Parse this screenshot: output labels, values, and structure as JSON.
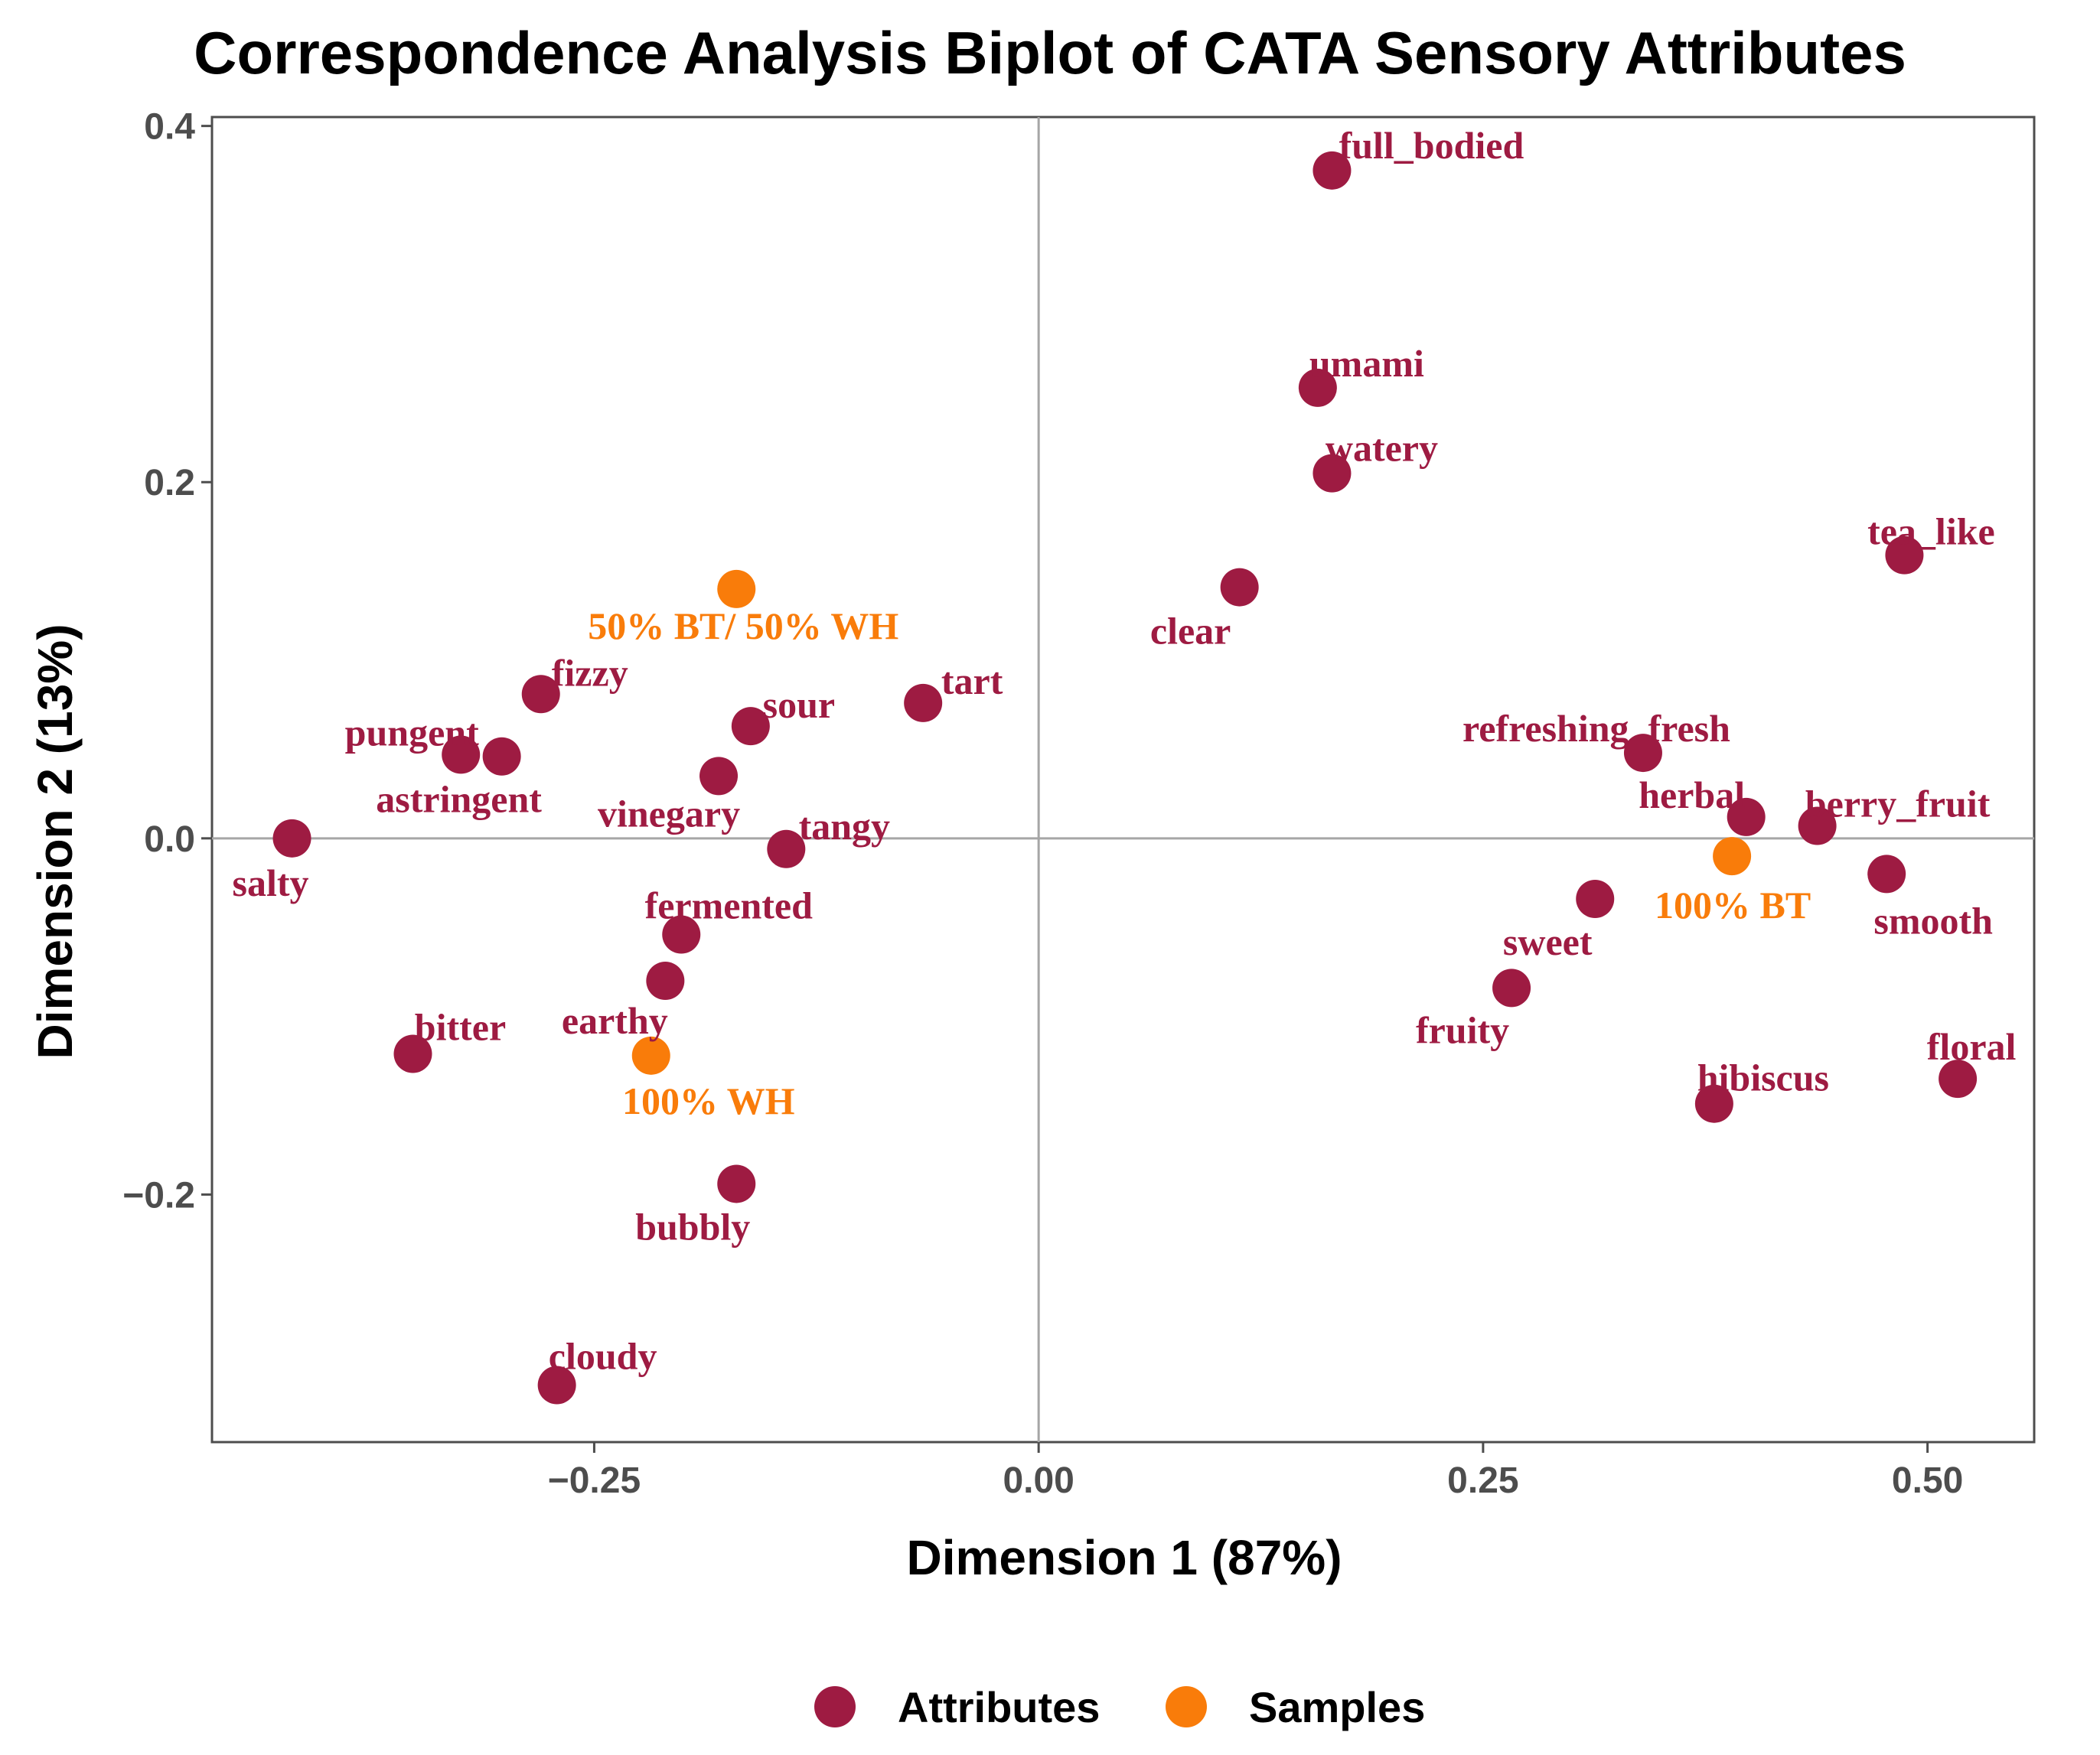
{
  "chart_data": {
    "type": "scatter",
    "title": "Correspondence Analysis Biplot of CATA Sensory Attributes",
    "xlabel": "Dimension 1 (87%)",
    "ylabel": "Dimension 2 (13%)",
    "xlim": [
      -0.465,
      0.56
    ],
    "ylim": [
      -0.339,
      0.405
    ],
    "x_ticks": [
      {
        "value": -0.25,
        "label": "−0.25"
      },
      {
        "value": 0.0,
        "label": "0.00"
      },
      {
        "value": 0.25,
        "label": "0.25"
      },
      {
        "value": 0.5,
        "label": "0.50"
      }
    ],
    "y_ticks": [
      {
        "value": -0.2,
        "label": "−0.2"
      },
      {
        "value": 0.0,
        "label": "0.0"
      },
      {
        "value": 0.2,
        "label": "0.2"
      },
      {
        "value": 0.4,
        "label": "0.4"
      }
    ],
    "reference_lines": {
      "x": 0,
      "y": 0
    },
    "grid": false,
    "legend": {
      "position": "bottom",
      "entries": [
        {
          "name": "Attributes",
          "color": "#9e1b42"
        },
        {
          "name": "Samples",
          "color": "#f97c0a"
        }
      ]
    },
    "series": [
      {
        "name": "Attributes",
        "color": "#9e1b42",
        "points": [
          {
            "label": "full_bodied",
            "x": 0.165,
            "y": 0.375
          },
          {
            "label": "umami",
            "x": 0.157,
            "y": 0.253
          },
          {
            "label": "watery",
            "x": 0.165,
            "y": 0.205
          },
          {
            "label": "tea_like",
            "x": 0.487,
            "y": 0.159
          },
          {
            "label": "clear",
            "x": 0.113,
            "y": 0.141
          },
          {
            "label": "fizzy",
            "x": -0.28,
            "y": 0.081
          },
          {
            "label": "tart",
            "x": -0.065,
            "y": 0.076
          },
          {
            "label": "sour",
            "x": -0.162,
            "y": 0.063
          },
          {
            "label": "pungent",
            "x": -0.325,
            "y": 0.047
          },
          {
            "label": "astringent",
            "x": -0.302,
            "y": 0.046
          },
          {
            "label": "refreshing_fresh",
            "x": 0.34,
            "y": 0.048
          },
          {
            "label": "vinegary",
            "x": -0.18,
            "y": 0.035
          },
          {
            "label": "herbal",
            "x": 0.398,
            "y": 0.012
          },
          {
            "label": "berry_fruit",
            "x": 0.438,
            "y": 0.007
          },
          {
            "label": "salty",
            "x": -0.42,
            "y": 0.0
          },
          {
            "label": "tangy",
            "x": -0.142,
            "y": -0.006
          },
          {
            "label": "smooth",
            "x": 0.477,
            "y": -0.02
          },
          {
            "label": "sweet",
            "x": 0.313,
            "y": -0.034
          },
          {
            "label": "fermented",
            "x": -0.201,
            "y": -0.054
          },
          {
            "label": "earthy",
            "x": -0.21,
            "y": -0.08
          },
          {
            "label": "fruity",
            "x": 0.266,
            "y": -0.084
          },
          {
            "label": "bitter",
            "x": -0.352,
            "y": -0.121
          },
          {
            "label": "floral",
            "x": 0.517,
            "y": -0.135
          },
          {
            "label": "hibiscus",
            "x": 0.38,
            "y": -0.149
          },
          {
            "label": "bubbly",
            "x": -0.17,
            "y": -0.194
          },
          {
            "label": "cloudy",
            "x": -0.271,
            "y": -0.307
          }
        ]
      },
      {
        "name": "Samples",
        "color": "#f97c0a",
        "points": [
          {
            "label": "50% BT/ 50% WH",
            "x": -0.17,
            "y": 0.14
          },
          {
            "label": "100% BT",
            "x": 0.39,
            "y": -0.01
          },
          {
            "label": "100% WH",
            "x": -0.218,
            "y": -0.122
          }
        ]
      }
    ]
  }
}
